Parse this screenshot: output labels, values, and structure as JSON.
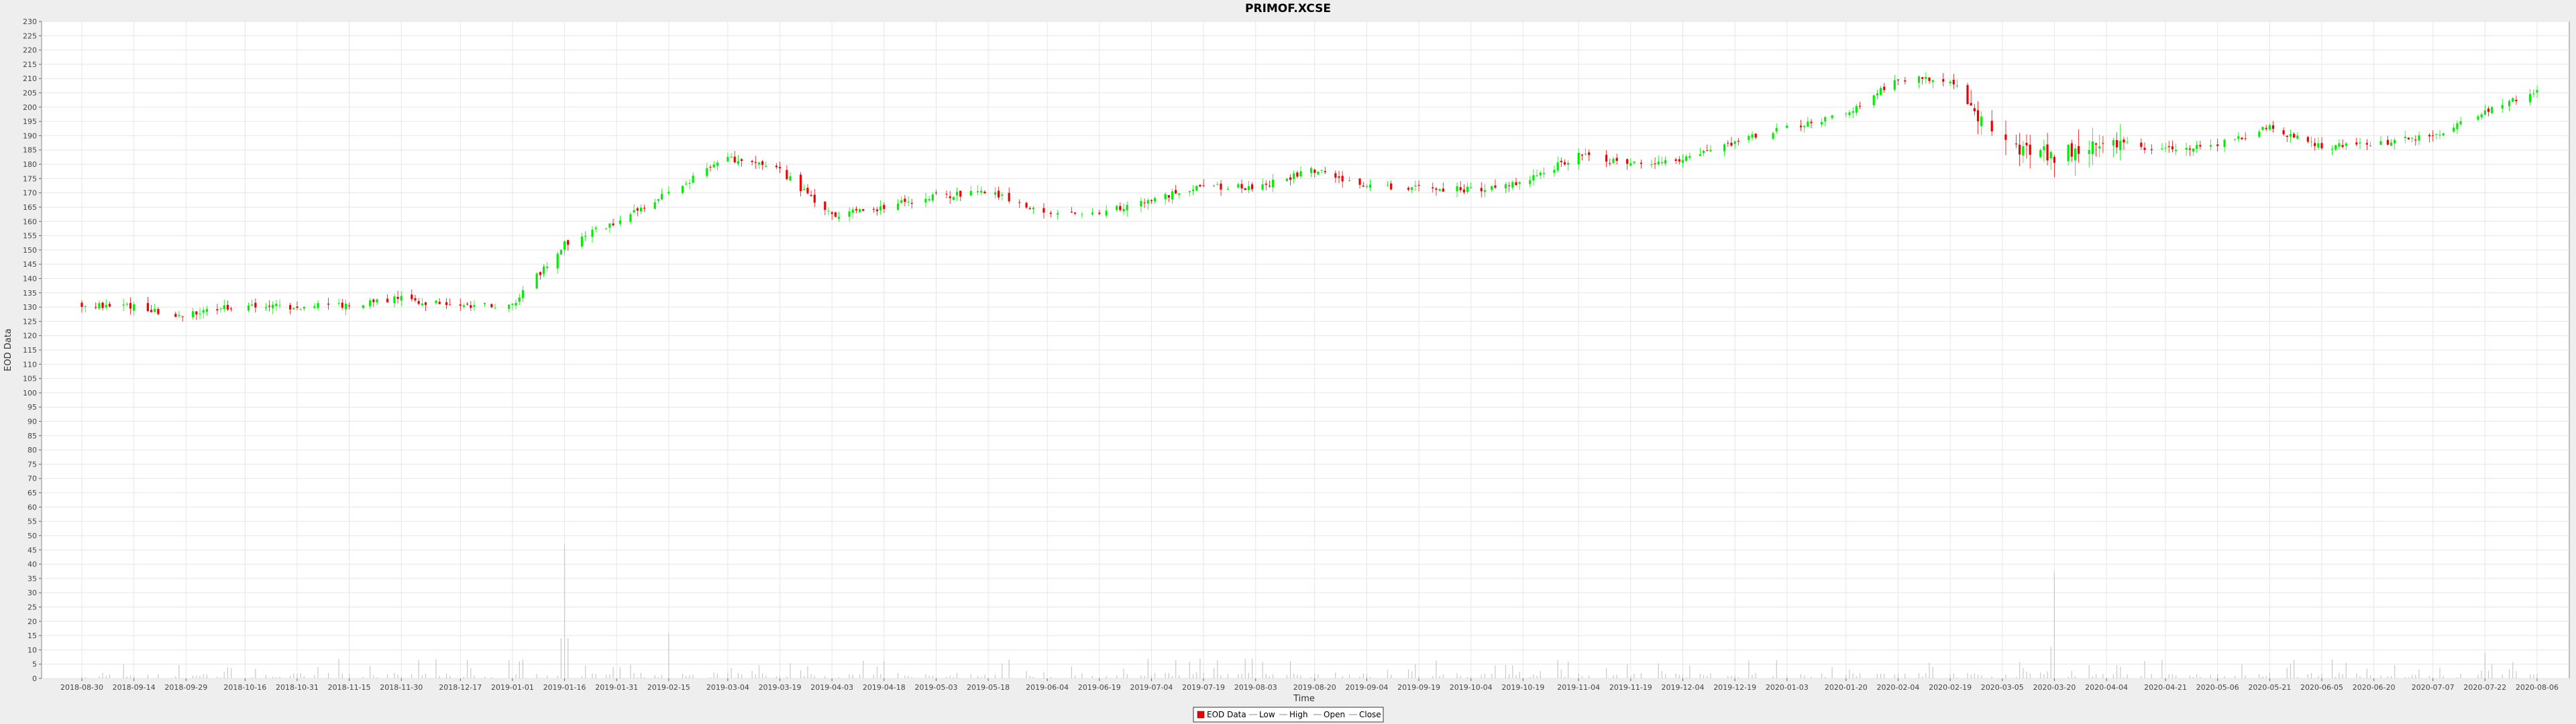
{
  "chart_data": {
    "type": "candlestick",
    "title": "PRIMOF.XCSE",
    "xlabel": "Time",
    "ylabel": "EOD Data",
    "y_ticks": [
      0,
      5,
      10,
      15,
      20,
      25,
      30,
      35,
      40,
      45,
      50,
      55,
      60,
      65,
      70,
      75,
      80,
      85,
      90,
      95,
      100,
      105,
      110,
      115,
      120,
      125,
      130,
      135,
      140,
      145,
      150,
      155,
      160,
      165,
      170,
      175,
      180,
      185,
      190,
      195,
      200,
      205,
      210,
      215,
      220,
      225,
      230
    ],
    "ylim": [
      0,
      230
    ],
    "x_ticks": [
      "2018-08-30",
      "2018-09-14",
      "2018-09-29",
      "2018-10-16",
      "2018-10-31",
      "2018-11-15",
      "2018-11-30",
      "2018-12-17",
      "2019-01-01",
      "2019-01-16",
      "2019-01-31",
      "2019-02-15",
      "2019-03-04",
      "2019-03-19",
      "2019-04-03",
      "2019-04-18",
      "2019-05-03",
      "2019-05-18",
      "2019-06-04",
      "2019-06-19",
      "2019-07-04",
      "2019-07-19",
      "2019-08-03",
      "2019-08-20",
      "2019-09-04",
      "2019-09-19",
      "2019-10-04",
      "2019-10-19",
      "2019-11-04",
      "2019-11-19",
      "2019-12-04",
      "2019-12-19",
      "2020-01-03",
      "2020-01-20",
      "2020-02-04",
      "2020-02-19",
      "2020-03-05",
      "2020-03-20",
      "2020-04-04",
      "2020-04-21",
      "2020-05-06",
      "2020-05-21",
      "2020-06-05",
      "2020-06-20",
      "2020-07-07",
      "2020-07-22",
      "2020-08-06"
    ],
    "series_close_approx": [
      [
        "2018-08-30",
        131
      ],
      [
        "2018-09-14",
        130
      ],
      [
        "2018-09-29",
        127
      ],
      [
        "2018-10-16",
        131
      ],
      [
        "2018-10-31",
        130
      ],
      [
        "2018-11-15",
        131
      ],
      [
        "2018-11-30",
        133
      ],
      [
        "2018-12-17",
        130
      ],
      [
        "2019-01-01",
        131
      ],
      [
        "2019-01-16",
        152
      ],
      [
        "2019-01-31",
        160
      ],
      [
        "2019-02-15",
        170
      ],
      [
        "2019-03-04",
        182
      ],
      [
        "2019-03-19",
        178
      ],
      [
        "2019-04-03",
        162
      ],
      [
        "2019-04-18",
        165
      ],
      [
        "2019-05-03",
        169
      ],
      [
        "2019-05-18",
        170
      ],
      [
        "2019-06-04",
        163
      ],
      [
        "2019-06-19",
        163
      ],
      [
        "2019-07-04",
        168
      ],
      [
        "2019-07-19",
        172
      ],
      [
        "2019-08-03",
        172
      ],
      [
        "2019-08-20",
        178
      ],
      [
        "2019-09-04",
        172
      ],
      [
        "2019-09-19",
        172
      ],
      [
        "2019-10-04",
        171
      ],
      [
        "2019-10-19",
        174
      ],
      [
        "2019-11-04",
        183
      ],
      [
        "2019-11-19",
        180
      ],
      [
        "2019-12-04",
        182
      ],
      [
        "2019-12-19",
        188
      ],
      [
        "2020-01-03",
        193
      ],
      [
        "2020-01-20",
        197
      ],
      [
        "2020-02-04",
        210
      ],
      [
        "2020-02-19",
        210
      ],
      [
        "2020-03-05",
        186
      ],
      [
        "2020-03-20",
        183
      ],
      [
        "2020-04-04",
        188
      ],
      [
        "2020-04-21",
        185
      ],
      [
        "2020-05-06",
        187
      ],
      [
        "2020-05-21",
        193
      ],
      [
        "2020-06-05",
        186
      ],
      [
        "2020-06-20",
        187
      ],
      [
        "2020-07-07",
        190
      ],
      [
        "2020-07-22",
        199
      ],
      [
        "2020-08-06",
        205
      ]
    ],
    "volume_peaks": [
      [
        "2019-01-16",
        47
      ],
      [
        "2019-01-31",
        13
      ],
      [
        "2019-02-15",
        16
      ],
      [
        "2020-03-20",
        37
      ],
      [
        "2020-07-22",
        9
      ]
    ],
    "legend": {
      "position": "bottom-center",
      "items": [
        "EOD Data",
        "Low",
        "High",
        "Open",
        "Close"
      ]
    },
    "colors": {
      "up": "#00ee00",
      "down": "#ee0000",
      "volume": "#c8c8c8",
      "grid": "#e6e6e6",
      "background": "#ffffff"
    },
    "grid": true
  }
}
